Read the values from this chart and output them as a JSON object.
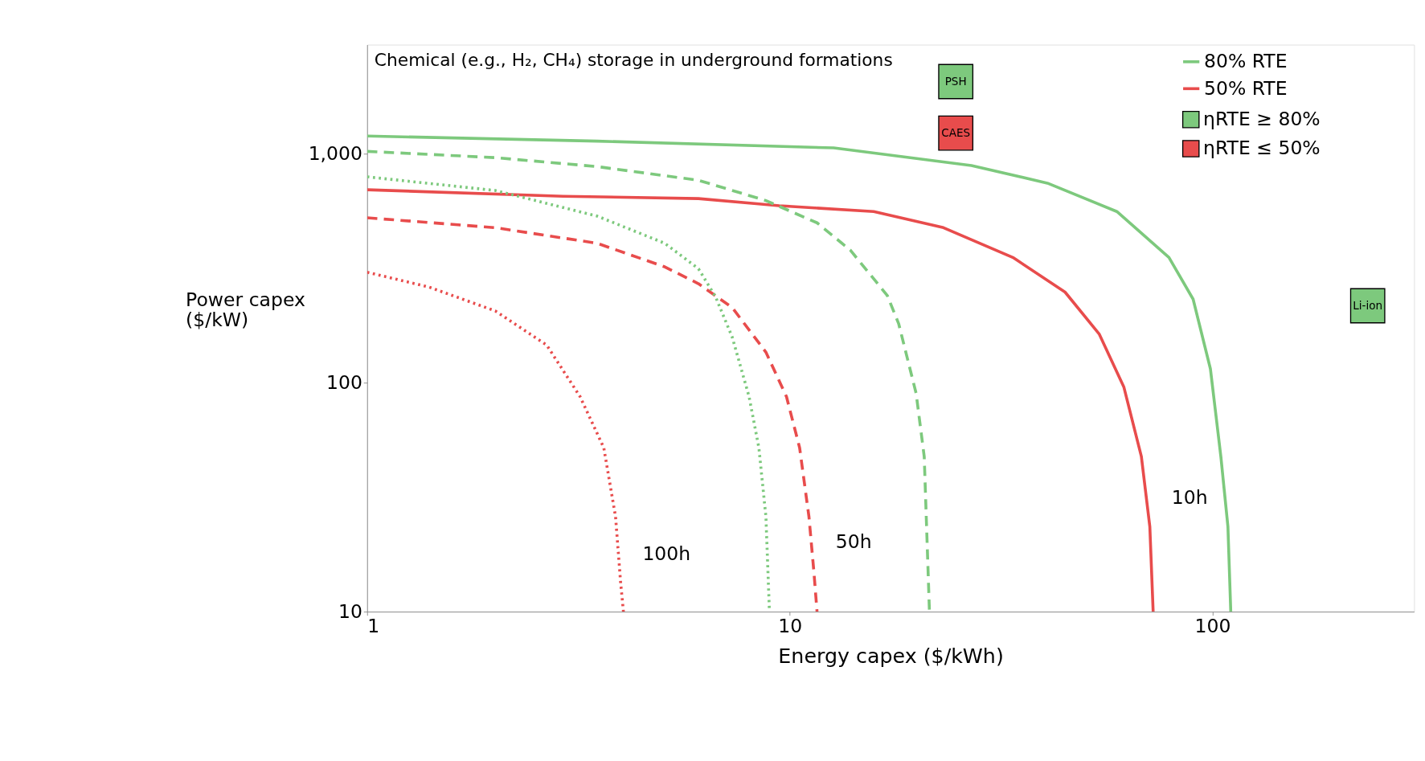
{
  "chart_data": {
    "type": "line",
    "xlabel": "Energy capex ($/kWh)",
    "ylabel": "Power capex ($/kW)",
    "log": "xy",
    "grid": false,
    "legend": "top right",
    "xlim": [
      1,
      300
    ],
    "ylim": [
      10,
      3000
    ],
    "xticks": [
      1,
      10,
      100
    ],
    "yticks": [
      10,
      100,
      {
        "value": 1000,
        "label": "1,000"
      }
    ],
    "series": [
      {
        "name": "80% RTE",
        "color": "#7dc97d",
        "line_style": "solid",
        "marker": "none",
        "x": [
          1,
          3.5,
          12.7,
          26.9,
          40.7,
          59.4,
          78.9,
          90,
          98.9,
          104.7,
          108.8,
          110.5
        ],
        "values": [
          1197,
          1137,
          1062,
          889,
          745,
          560,
          353,
          232,
          115,
          47.6,
          23.5,
          10
        ]
      },
      {
        "name": "50% RTE",
        "color": "#e84c4c",
        "line_style": "solid",
        "marker": "none",
        "x": [
          1,
          2.91,
          6.08,
          9.44,
          15.8,
          23.1,
          33.7,
          44.8,
          54,
          61.7,
          67.9,
          71.1,
          72.4
        ],
        "values": [
          697,
          653,
          638,
          594,
          560,
          476,
          353,
          249,
          163,
          96,
          47.6,
          23.5,
          10
        ]
      },
      {
        "color": "#7dc97d",
        "line_style": "dashed",
        "marker": "none",
        "x": [
          1,
          2.01,
          3.5,
          6.08,
          8.78,
          11.6,
          13.9,
          17.0,
          18.1,
          19.9,
          20.8,
          21.4
        ],
        "values": [
          1026,
          963,
          880,
          767,
          625,
          500,
          380,
          241,
          181,
          90,
          47.6,
          10
        ]
      },
      {
        "color": "#e84c4c",
        "line_style": "dashed",
        "marker": "none",
        "x": [
          1,
          2.01,
          3.5,
          5.06,
          6.08,
          7.31,
          8.78,
          9.82,
          10.55,
          11.1,
          11.4,
          11.6
        ],
        "values": [
          526,
          476,
          407,
          321,
          271,
          213,
          136,
          87,
          52,
          26,
          15,
          10
        ]
      },
      {
        "color": "#7dc97d",
        "line_style": "dotted",
        "marker": "none",
        "x": [
          1,
          2.01,
          3.5,
          5.06,
          6.08,
          6.67,
          7.31,
          8.01,
          8.45,
          8.78,
          8.95
        ],
        "values": [
          794,
          692,
          535,
          407,
          315,
          238,
          158,
          87,
          52,
          26,
          10
        ]
      },
      {
        "color": "#e84c4c",
        "line_style": "dotted",
        "marker": "none",
        "x": [
          1,
          1.4,
          2.01,
          2.66,
          3.19,
          3.63,
          3.87,
          3.98,
          4.04
        ],
        "values": [
          304,
          262,
          206,
          146,
          87,
          52,
          26,
          13.3,
          10
        ]
      },
      {
        "type": "scatter",
        "name": "ηRTE ≥ 80%",
        "color": "#7dc97d",
        "marker": "square",
        "x": [
          24.7,
          233
        ],
        "values": [
          2070,
          217
        ]
      },
      {
        "type": "scatter",
        "name": "ηRTE ≤  50%",
        "color": "#e84c4c",
        "marker": "square",
        "x": [
          24.7
        ],
        "values": [
          1233
        ]
      }
    ],
    "annotations": [
      {
        "text": "PSH",
        "x": 24.7,
        "y": 2070
      },
      {
        "text": "CAES",
        "x": 24.7,
        "y": 1233
      },
      {
        "text": "Li-ion",
        "x": 233,
        "y": 217
      },
      {
        "text": "100h",
        "x": 3.98,
        "y": 13.3
      },
      {
        "text": "50h",
        "x": 11.4,
        "y": 15
      },
      {
        "text": "10h",
        "x": 71.1,
        "y": 23.5
      },
      "Chemical (e.g., H₂, CH₄) storage in underground formations"
    ]
  }
}
